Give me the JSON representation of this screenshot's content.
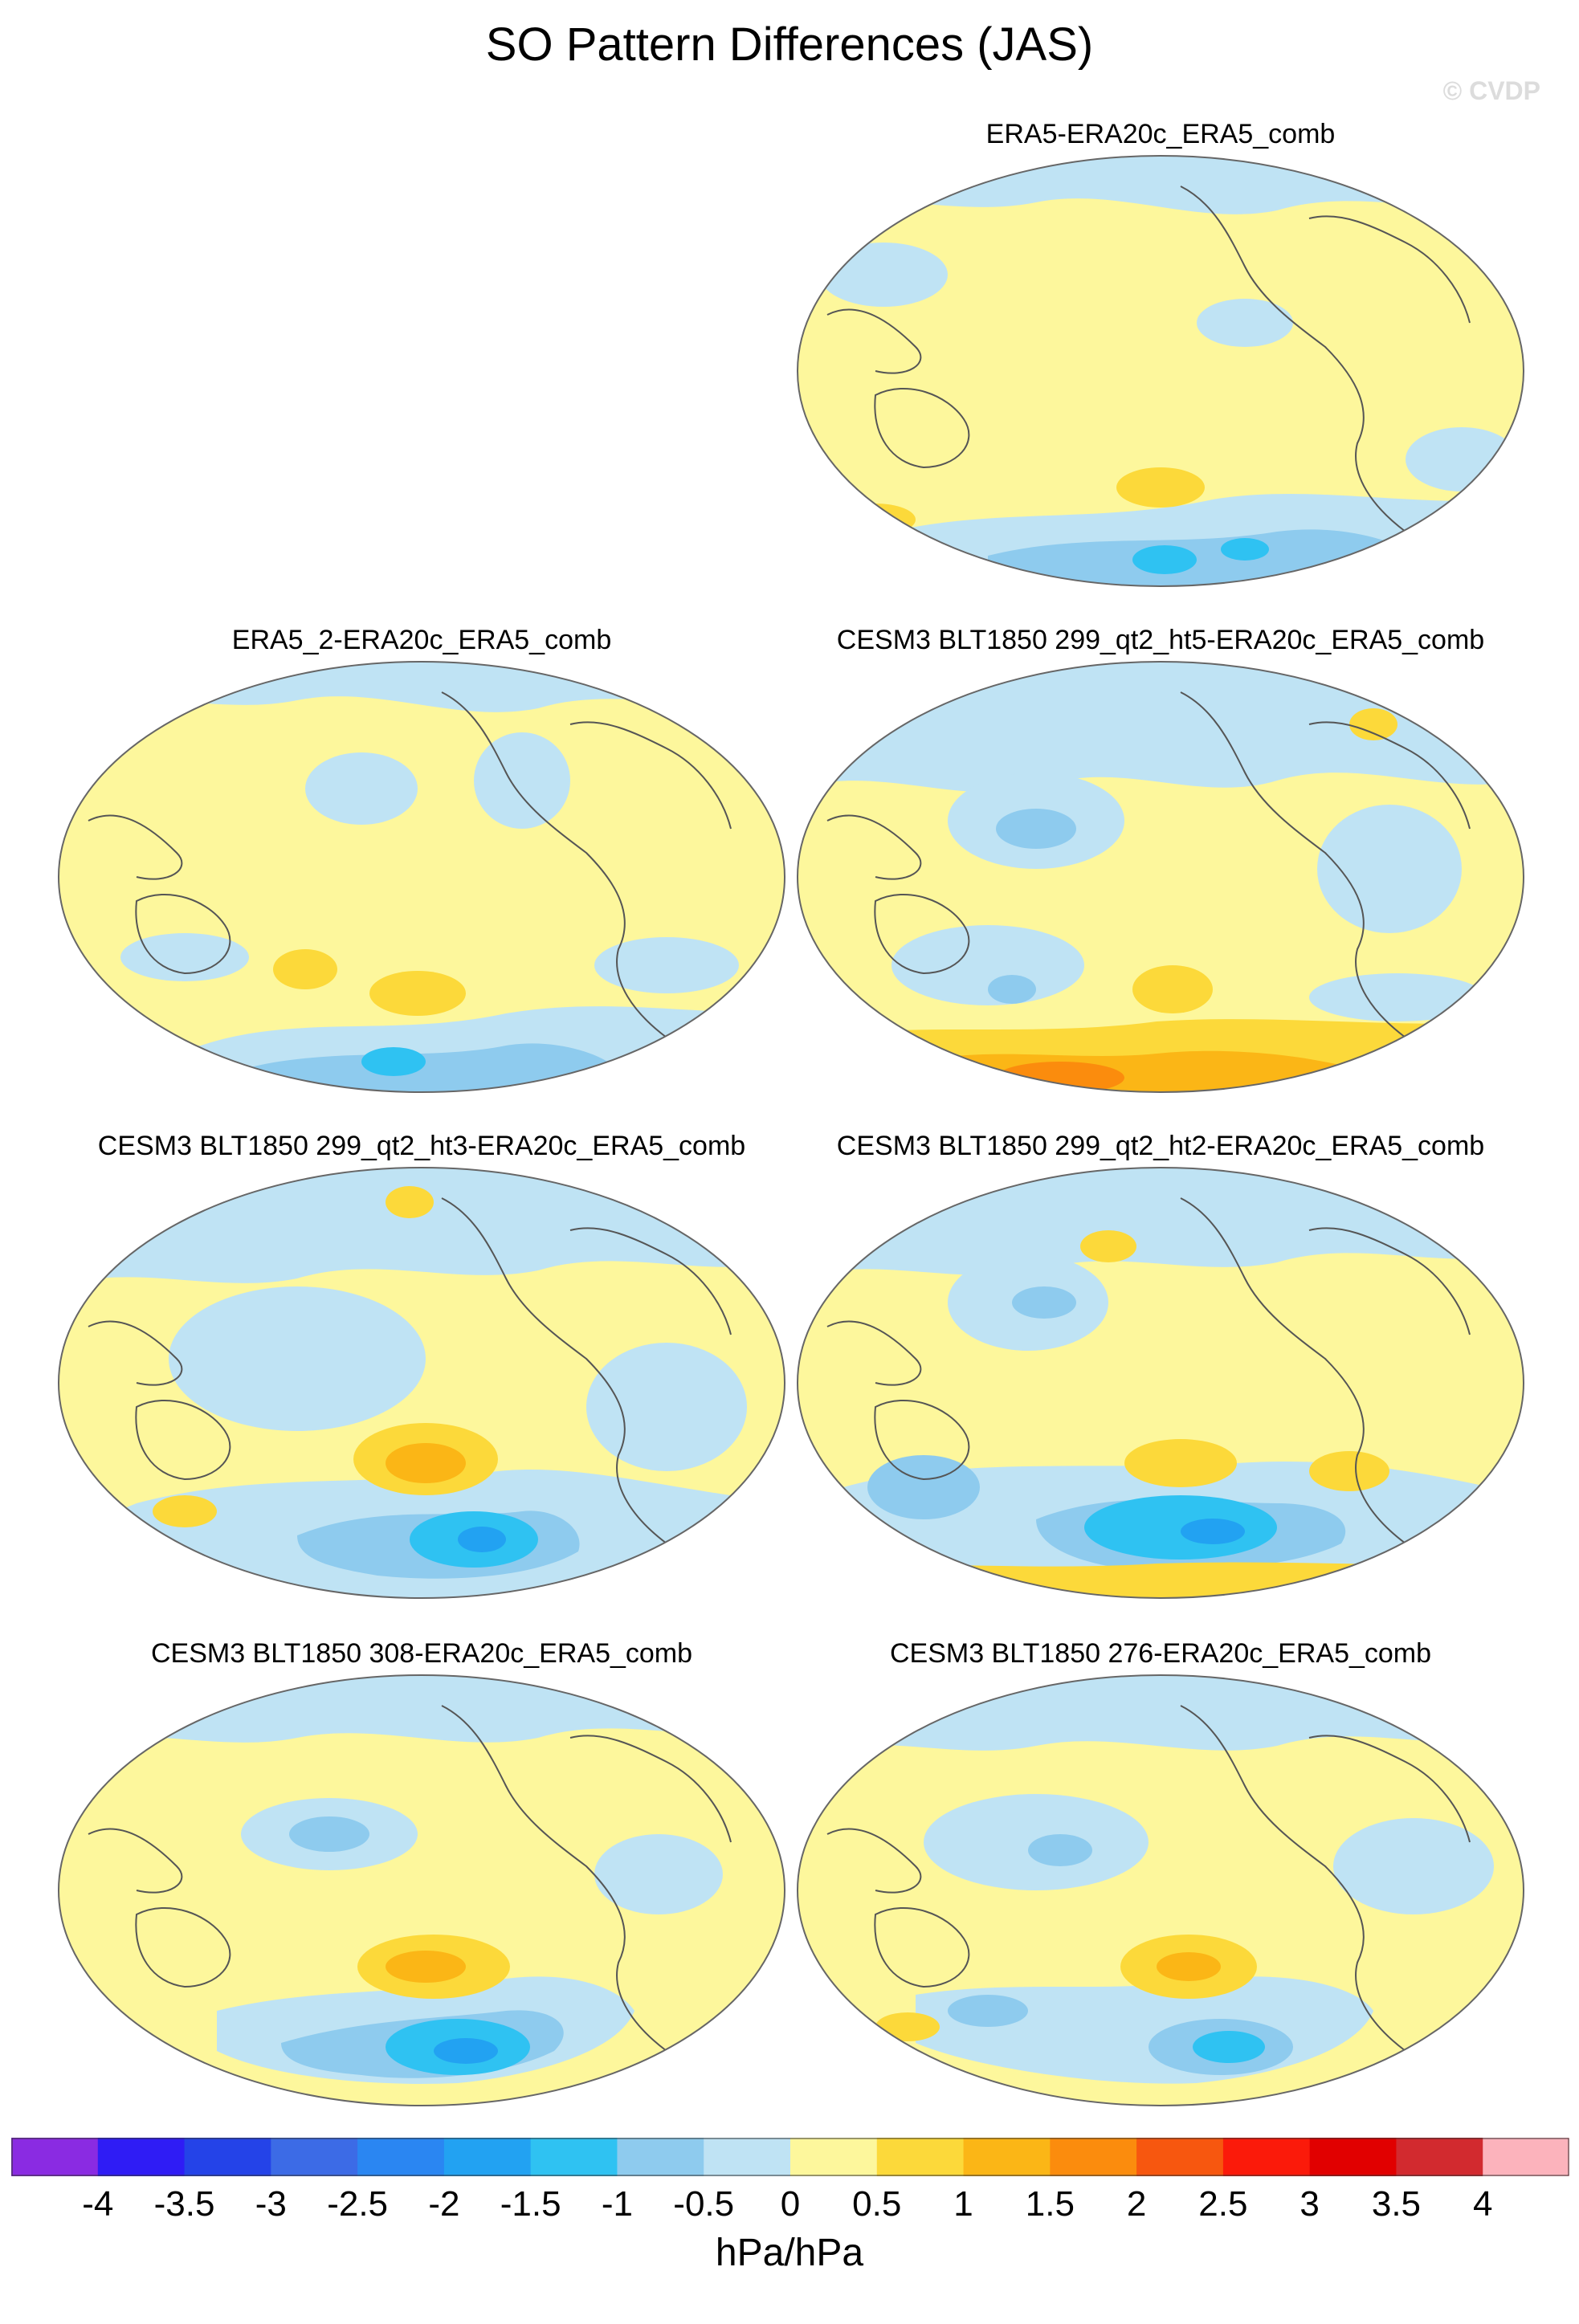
{
  "title": "SO Pattern Differences (JAS)",
  "watermark": "© CVDP",
  "colors": {
    "neg4": "#8a2be2",
    "neg35": "#2f1cf5",
    "neg3": "#2443e8",
    "neg25": "#3c6be6",
    "neg2": "#2a86f2",
    "neg15": "#22a2f2",
    "neg1": "#2fc2f2",
    "neg05": "#8ecbee",
    "neg0": "#bfe3f4",
    "pos0": "#fdf79c",
    "pos05": "#fcd93a",
    "pos1": "#fbb616",
    "pos15": "#fb8c0d",
    "pos2": "#f7570f",
    "pos25": "#fb1a0a",
    "pos3": "#e10000",
    "pos35": "#d22a2f",
    "pos4": "#fcb3bc",
    "land_outline": "#555555",
    "frame": "#666666"
  },
  "panels": [
    {
      "id": "p1",
      "title": "ERA5-ERA20c_ERA5_comb"
    },
    {
      "id": "p2",
      "title": "ERA5_2-ERA20c_ERA5_comb"
    },
    {
      "id": "p3",
      "title": "CESM3 BLT1850 299_qt2_ht5-ERA20c_ERA5_comb"
    },
    {
      "id": "p4",
      "title": "CESM3 BLT1850 299_qt2_ht3-ERA20c_ERA5_comb"
    },
    {
      "id": "p5",
      "title": "CESM3 BLT1850 299_qt2_ht2-ERA20c_ERA5_comb"
    },
    {
      "id": "p6",
      "title": "CESM3 BLT1850 308-ERA20c_ERA5_comb"
    },
    {
      "id": "p7",
      "title": "CESM3 BLT1850 276-ERA20c_ERA5_comb"
    }
  ],
  "colorbar": {
    "labels": [
      "-4",
      "-3.5",
      "-3",
      "-2.5",
      "-2",
      "-1.5",
      "-1",
      "-0.5",
      "0",
      "0.5",
      "1",
      "1.5",
      "2",
      "2.5",
      "3",
      "3.5",
      "4"
    ],
    "units": "hPa/hPa"
  }
}
